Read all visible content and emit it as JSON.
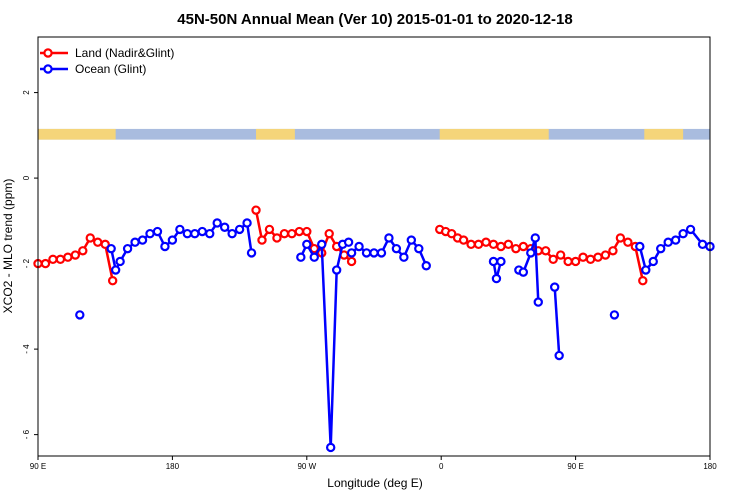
{
  "chart_data": {
    "type": "line",
    "title": "45N-50N Annual Mean (Ver 10)   2015-01-01 to 2020-12-18",
    "xlabel": "Longitude (deg E)",
    "ylabel": "XCO2 - MLO trend (ppm)",
    "xlim": [
      90,
      540
    ],
    "ylim": [
      -6.5,
      3.3
    ],
    "x_ticks": [
      {
        "value": 90,
        "label": "90 E"
      },
      {
        "value": 180,
        "label": "180"
      },
      {
        "value": 270,
        "label": "90 W"
      },
      {
        "value": 360,
        "label": "0"
      },
      {
        "value": 450,
        "label": "90 E"
      },
      {
        "value": 540,
        "label": "180"
      }
    ],
    "y_ticks": [
      {
        "value": 2,
        "label": "2"
      },
      {
        "value": 0,
        "label": "0"
      },
      {
        "value": -2,
        "label": "- 2"
      },
      {
        "value": -4,
        "label": "- 4"
      },
      {
        "value": -6,
        "label": "- 6"
      }
    ],
    "land_band": {
      "y_range": [
        0.9,
        1.15
      ],
      "land_color": "#f5d57a",
      "ocean_color": "#a9bcdf",
      "land_spans": [
        [
          90,
          142
        ],
        [
          236,
          262
        ],
        [
          359,
          432
        ],
        [
          496,
          522
        ]
      ]
    },
    "legend": {
      "position": "top-left",
      "entries": [
        {
          "name": "Land (Nadir&Glint)",
          "color": "#ff0000"
        },
        {
          "name": "Ocean (Glint)",
          "color": "#0000ff"
        }
      ]
    },
    "series": [
      {
        "name": "Land (Nadir&Glint)",
        "color": "#ff0000",
        "segments": [
          [
            [
              90,
              -2.0
            ],
            [
              95,
              -2.0
            ],
            [
              100,
              -1.9
            ],
            [
              105,
              -1.9
            ],
            [
              110,
              -1.85
            ],
            [
              115,
              -1.8
            ],
            [
              120,
              -1.7
            ],
            [
              125,
              -1.4
            ],
            [
              130,
              -1.5
            ],
            [
              135,
              -1.55
            ],
            [
              140,
              -2.4
            ]
          ],
          [
            [
              236,
              -0.75
            ],
            [
              240,
              -1.45
            ],
            [
              245,
              -1.2
            ],
            [
              250,
              -1.4
            ],
            [
              255,
              -1.3
            ],
            [
              260,
              -1.3
            ],
            [
              265,
              -1.25
            ],
            [
              270,
              -1.25
            ],
            [
              275,
              -1.65
            ],
            [
              280,
              -1.75
            ],
            [
              285,
              -1.3
            ],
            [
              290,
              -1.6
            ],
            [
              295,
              -1.8
            ],
            [
              300,
              -1.95
            ]
          ],
          [
            [
              359,
              -1.2
            ],
            [
              363,
              -1.25
            ],
            [
              367,
              -1.3
            ],
            [
              371,
              -1.4
            ],
            [
              375,
              -1.45
            ],
            [
              380,
              -1.55
            ],
            [
              385,
              -1.55
            ],
            [
              390,
              -1.5
            ],
            [
              395,
              -1.55
            ],
            [
              400,
              -1.6
            ],
            [
              405,
              -1.55
            ],
            [
              410,
              -1.65
            ],
            [
              415,
              -1.6
            ],
            [
              420,
              -1.65
            ],
            [
              425,
              -1.7
            ],
            [
              430,
              -1.7
            ],
            [
              435,
              -1.9
            ],
            [
              440,
              -1.8
            ],
            [
              445,
              -1.95
            ],
            [
              450,
              -1.95
            ],
            [
              455,
              -1.85
            ],
            [
              460,
              -1.9
            ],
            [
              465,
              -1.85
            ],
            [
              470,
              -1.8
            ],
            [
              475,
              -1.7
            ],
            [
              480,
              -1.4
            ],
            [
              485,
              -1.5
            ],
            [
              490,
              -1.6
            ],
            [
              495,
              -2.4
            ]
          ]
        ]
      },
      {
        "name": "Ocean (Glint)",
        "color": "#0000ff",
        "segments": [
          [
            [
              118,
              -3.2
            ]
          ],
          [
            [
              139,
              -1.65
            ],
            [
              142,
              -2.15
            ],
            [
              145,
              -1.95
            ],
            [
              150,
              -1.65
            ],
            [
              155,
              -1.5
            ],
            [
              160,
              -1.45
            ],
            [
              165,
              -1.3
            ],
            [
              170,
              -1.25
            ],
            [
              175,
              -1.6
            ],
            [
              180,
              -1.45
            ],
            [
              185,
              -1.2
            ],
            [
              190,
              -1.3
            ],
            [
              195,
              -1.3
            ],
            [
              200,
              -1.25
            ],
            [
              205,
              -1.3
            ],
            [
              210,
              -1.05
            ],
            [
              215,
              -1.15
            ],
            [
              220,
              -1.3
            ],
            [
              225,
              -1.2
            ],
            [
              230,
              -1.05
            ],
            [
              233,
              -1.75
            ]
          ],
          [
            [
              266,
              -1.85
            ],
            [
              270,
              -1.55
            ],
            [
              275,
              -1.85
            ],
            [
              280,
              -1.55
            ],
            [
              286,
              -6.3
            ],
            [
              290,
              -2.15
            ],
            [
              294,
              -1.55
            ],
            [
              298,
              -1.5
            ]
          ],
          [
            [
              300,
              -1.75
            ],
            [
              305,
              -1.6
            ],
            [
              310,
              -1.75
            ],
            [
              315,
              -1.75
            ],
            [
              320,
              -1.75
            ],
            [
              325,
              -1.4
            ],
            [
              330,
              -1.65
            ],
            [
              335,
              -1.85
            ],
            [
              340,
              -1.45
            ],
            [
              345,
              -1.65
            ],
            [
              350,
              -2.05
            ]
          ],
          [
            [
              395,
              -1.95
            ],
            [
              397,
              -2.35
            ],
            [
              400,
              -1.95
            ]
          ],
          [
            [
              412,
              -2.15
            ],
            [
              415,
              -2.2
            ],
            [
              420,
              -1.75
            ],
            [
              423,
              -1.4
            ],
            [
              425,
              -2.9
            ]
          ],
          [
            [
              436,
              -2.55
            ],
            [
              439,
              -4.15
            ]
          ],
          [
            [
              476,
              -3.2
            ]
          ],
          [
            [
              493,
              -1.6
            ],
            [
              497,
              -2.15
            ],
            [
              502,
              -1.95
            ],
            [
              507,
              -1.65
            ],
            [
              512,
              -1.5
            ],
            [
              517,
              -1.45
            ],
            [
              522,
              -1.3
            ],
            [
              527,
              -1.2
            ],
            [
              535,
              -1.55
            ],
            [
              540,
              -1.6
            ]
          ]
        ]
      }
    ]
  }
}
